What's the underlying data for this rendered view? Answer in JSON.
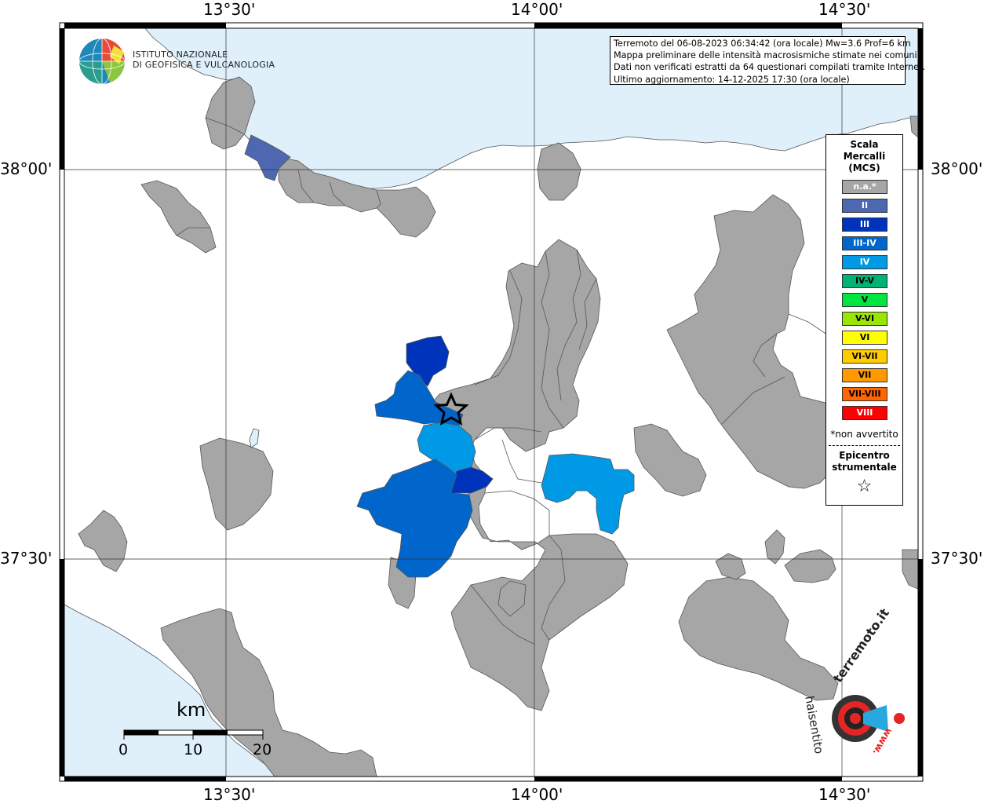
{
  "axes": {
    "top_labels": [
      "13°30'",
      "14°00'",
      "14°30'"
    ],
    "bottom_labels": [
      "13°30'",
      "14°00'",
      "14°30'"
    ],
    "left_labels": [
      "38°00'",
      "37°30'"
    ],
    "right_labels": [
      "38°00'",
      "37°30'"
    ]
  },
  "institute": {
    "line1": "ISTITUTO NAZIONALE",
    "line2": "DI GEOFISICA E VULCANOLOGIA"
  },
  "info": {
    "line1": "Terremoto del 06-08-2023 06:34:42 (ora locale) Mw=3.6 Prof=6 km",
    "line2": "Mappa preliminare delle intensità macrosismiche stimate nei comuni",
    "line3": "Dati non verificati estratti da 64 questionari compilati tramite Internet.",
    "line4": "Ultimo aggiornamento: 14-12-2025 17:30 (ora locale)"
  },
  "legend": {
    "title1": "Scala",
    "title2": "Mercalli",
    "title3": "(MCS)",
    "items": [
      {
        "label": "n.a.*",
        "color": "#a6a6a6",
        "text_color": "#ffffff"
      },
      {
        "label": "II",
        "color": "#4d68b0",
        "text_color": "#ffffff"
      },
      {
        "label": "III",
        "color": "#0033bb",
        "text_color": "#ffffff"
      },
      {
        "label": "III-IV",
        "color": "#0066cc",
        "text_color": "#ffffff"
      },
      {
        "label": "IV",
        "color": "#0099e6",
        "text_color": "#ffffff"
      },
      {
        "label": "IV-V",
        "color": "#00b373",
        "text_color": "#000000"
      },
      {
        "label": "V",
        "color": "#00e640",
        "text_color": "#000000"
      },
      {
        "label": "V-VI",
        "color": "#99e600",
        "text_color": "#000000"
      },
      {
        "label": "VI",
        "color": "#ffff00",
        "text_color": "#000000"
      },
      {
        "label": "VI-VII",
        "color": "#ffcc00",
        "text_color": "#000000"
      },
      {
        "label": "VII",
        "color": "#ff9900",
        "text_color": "#000000"
      },
      {
        "label": "VII-VIII",
        "color": "#ff6600",
        "text_color": "#000000"
      },
      {
        "label": "VIII",
        "color": "#ff0000",
        "text_color": "#ffffff"
      }
    ],
    "note": "*non avvertito",
    "epi1": "Epicentro",
    "epi2": "strumentale",
    "epi_symbol": "☆"
  },
  "scalebar": {
    "unit": "km",
    "ticks": [
      "0",
      "10",
      "20"
    ]
  },
  "badge": {
    "top": "terremoto.it",
    "bottom": "haisentito",
    "www": "www."
  },
  "colors": {
    "sea": "#dff0fb",
    "land": "#ffffff",
    "no_data": "#a6a6a6"
  }
}
